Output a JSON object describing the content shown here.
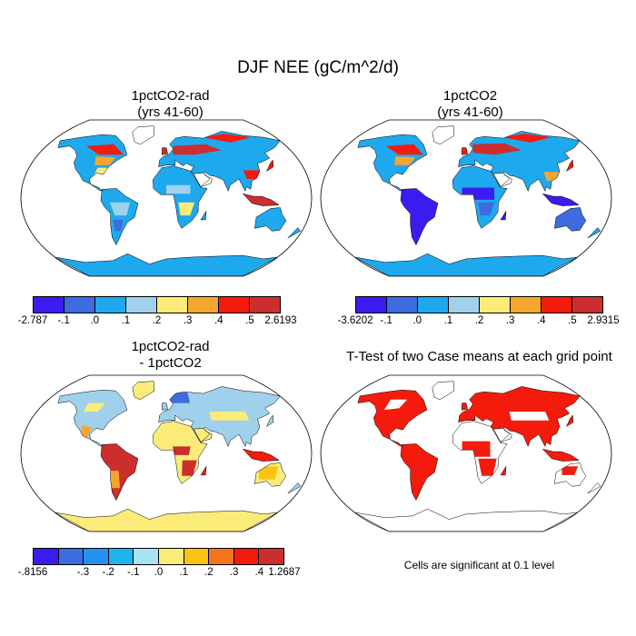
{
  "figure": {
    "title": "DJF NEE (gC/m^2/d)"
  },
  "panels": {
    "top_left": {
      "title_line1": "1pctCO2-rad",
      "title_line2": "(yrs 41-60)",
      "map_style": "nee_rad"
    },
    "top_right": {
      "title_line1": "1pctCO2",
      "title_line2": "(yrs 41-60)",
      "map_style": "nee_ctl"
    },
    "bottom_left": {
      "title_line1": "1pctCO2-rad",
      "title_line2": "- 1pctCO2",
      "map_style": "diff"
    },
    "bottom_right": {
      "title": "T-Test of two Case means at each grid point",
      "map_style": "ttest",
      "note": "Cells are significant at 0.1 level"
    }
  },
  "colorbars": {
    "top_left": {
      "colors": [
        "#3b1cf0",
        "#3d6be0",
        "#1ea8ee",
        "#9fd1ec",
        "#fbec7a",
        "#f4a62e",
        "#f51b0c",
        "#cc2d2d"
      ],
      "labels": [
        "-2.787",
        "-.1",
        ".0",
        ".1",
        ".2",
        ".3",
        ".4",
        ".5",
        "2.6193"
      ]
    },
    "top_right": {
      "colors": [
        "#3b1cf0",
        "#3d6be0",
        "#1ea8ee",
        "#9fd1ec",
        "#fbec7a",
        "#f4a62e",
        "#f51b0c",
        "#cc2d2d"
      ],
      "labels": [
        "-3.6202",
        "-.1",
        ".0",
        ".1",
        ".2",
        ".3",
        ".4",
        ".5",
        "2.9315"
      ]
    },
    "bottom_left": {
      "colors": [
        "#3b1cf0",
        "#3d6be0",
        "#2690ee",
        "#1eb4ee",
        "#a9e3f3",
        "#fbec7a",
        "#fbc312",
        "#f4741a",
        "#f51b0c",
        "#cc2d2d"
      ],
      "labels": [
        "-.8156",
        "",
        "-.3",
        "-.2",
        "-.1",
        ".0",
        ".1",
        ".2",
        ".3",
        ".4",
        "1.2687"
      ]
    }
  },
  "colors": {
    "significant": "#ee0000",
    "ocean": "#ffffff",
    "coast": "#000000"
  }
}
